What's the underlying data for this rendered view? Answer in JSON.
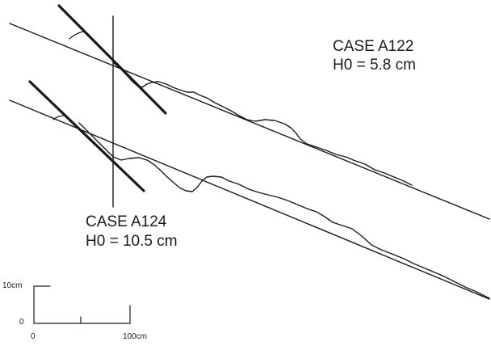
{
  "annotations": {
    "case_a122": {
      "title": "CASE A122",
      "h0": "H0 = 5.8 cm"
    },
    "case_a124": {
      "title": "CASE A124",
      "h0": "H0 = 10.5 cm"
    }
  },
  "scale_bar": {
    "vertical_top": "10cm",
    "vertical_bottom": "0",
    "horizontal_left": "0",
    "horizontal_right": "100cm"
  },
  "colors": {
    "ink": "#1a1a1a",
    "background": "#ffffff"
  }
}
